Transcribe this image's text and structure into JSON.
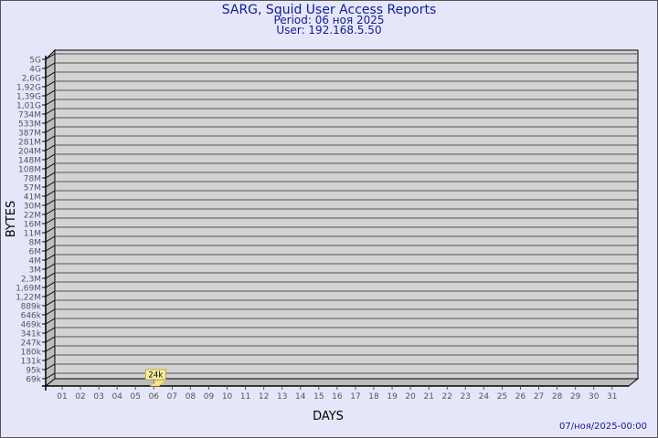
{
  "header": {
    "title": "SARG, Squid User Access Reports",
    "period": "Period: 06 ноя 2025",
    "user": "User: 192.168.5.50"
  },
  "footer": {
    "timestamp": "07/ноя/2025-00:00"
  },
  "colors": {
    "background": "#e6e6fa",
    "plot": "#d3d3d3",
    "title": "#0f1d8c",
    "bar": "#ffe680",
    "label_bg": "#f5f0a8"
  },
  "chart_data": {
    "type": "bar",
    "title": "SARG, Squid User Access Reports",
    "xlabel": "DAYS",
    "ylabel": "BYTES",
    "y_scale": "log",
    "y_tick_labels": [
      "5G",
      "4G",
      "2,6G",
      "1,92G",
      "1,39G",
      "1,01G",
      "734M",
      "533M",
      "387M",
      "281M",
      "204M",
      "148M",
      "108M",
      "78M",
      "57M",
      "41M",
      "30M",
      "22M",
      "16M",
      "11M",
      "8M",
      "6M",
      "4M",
      "3M",
      "2,3M",
      "1,69M",
      "1,22M",
      "889k",
      "646k",
      "469k",
      "341k",
      "247k",
      "180k",
      "131k",
      "95k",
      "69k"
    ],
    "categories": [
      "01",
      "02",
      "03",
      "04",
      "05",
      "06",
      "07",
      "08",
      "09",
      "10",
      "11",
      "12",
      "13",
      "14",
      "15",
      "16",
      "17",
      "18",
      "19",
      "20",
      "21",
      "22",
      "23",
      "24",
      "25",
      "26",
      "27",
      "28",
      "29",
      "30",
      "31"
    ],
    "points": [
      {
        "day": "06",
        "value": 24000,
        "label": "24k"
      }
    ],
    "grid": true
  }
}
